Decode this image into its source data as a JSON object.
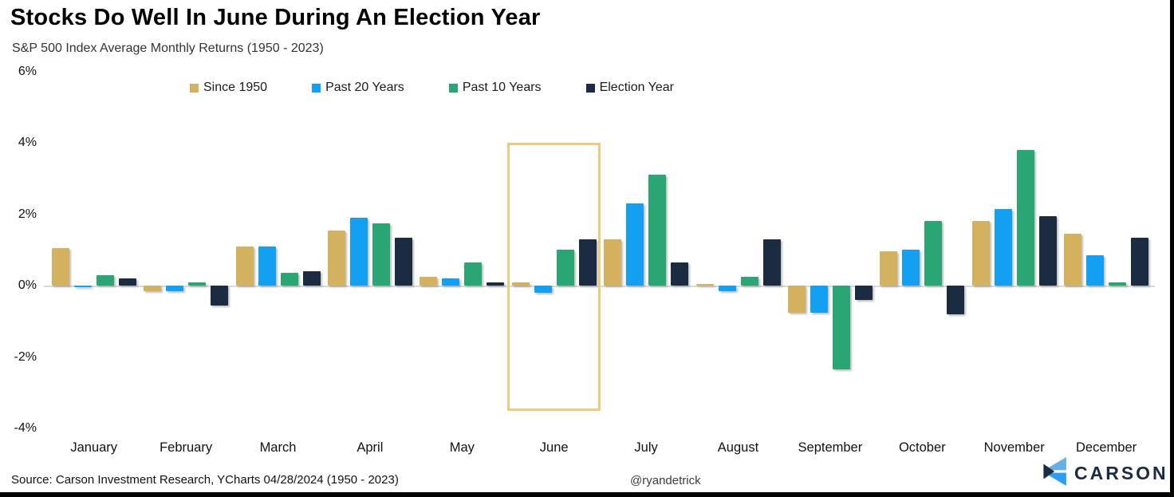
{
  "header": {
    "title": "Stocks Do Well In June During An Election Year",
    "subtitle": "S&P 500 Index Average Monthly Returns (1950 - 2023)"
  },
  "footer": {
    "source": "Source: Carson Investment Research, YCharts 04/28/2024 (1950 - 2023)",
    "handle": "@ryandetrick",
    "logo_text": "CARSON"
  },
  "colors": {
    "since_1950": "#d3b15f",
    "past_20_years": "#14a0f2",
    "past_10_years": "#2aa674",
    "election_year": "#1b2b42",
    "highlight_border": "#eccb7d",
    "zero_line": "#d9d9d9",
    "logo_navy": "#1b2b42",
    "logo_light_blue": "#66aee6",
    "logo_blue": "#2d9cf4"
  },
  "chart_data": {
    "type": "bar",
    "title": "Stocks Do Well In June During An Election Year",
    "subtitle": "S&P 500 Index Average Monthly Returns (1950 - 2023)",
    "categories": [
      "January",
      "February",
      "March",
      "April",
      "May",
      "June",
      "July",
      "August",
      "September",
      "October",
      "November",
      "December"
    ],
    "series": [
      {
        "name": "Since 1950",
        "color": "#d3b15f",
        "values": [
          1.05,
          -0.15,
          1.1,
          1.55,
          0.25,
          0.1,
          1.3,
          0.0,
          -0.75,
          0.95,
          1.8,
          1.45
        ]
      },
      {
        "name": "Past 20 Years",
        "color": "#14a0f2",
        "values": [
          -0.05,
          -0.15,
          1.1,
          1.9,
          0.2,
          -0.2,
          2.3,
          -0.15,
          -0.75,
          1.0,
          2.15,
          0.85
        ]
      },
      {
        "name": "Past 10 Years",
        "color": "#2aa674",
        "values": [
          0.3,
          0.1,
          0.35,
          1.75,
          0.65,
          1.0,
          3.1,
          0.25,
          -2.35,
          1.8,
          3.8,
          0.1
        ]
      },
      {
        "name": "Election Year",
        "color": "#1b2b42",
        "values": [
          0.2,
          -0.55,
          0.4,
          1.35,
          0.1,
          1.3,
          0.65,
          1.3,
          -0.4,
          -0.8,
          1.95,
          1.35
        ]
      }
    ],
    "y_ticks": [
      {
        "label": "6%",
        "value": 6
      },
      {
        "label": "4%",
        "value": 4
      },
      {
        "label": "2%",
        "value": 2
      },
      {
        "label": "0%",
        "value": 0
      },
      {
        "label": "-2%",
        "value": -2
      },
      {
        "label": "-4%",
        "value": -4
      }
    ],
    "ylim": [
      -4.1,
      6.1
    ],
    "xlabel": "",
    "ylabel": "",
    "grid": false,
    "legend_position": "top",
    "highlight": {
      "category": "June",
      "from_value": 4,
      "to_value": -3.5
    }
  }
}
